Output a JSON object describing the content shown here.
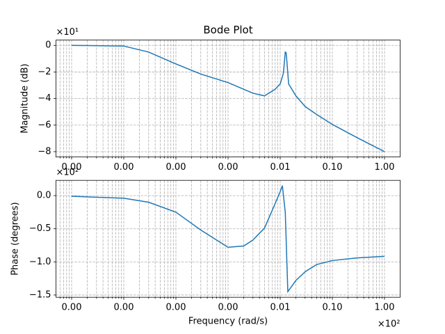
{
  "chart_data": [
    {
      "type": "line",
      "title": "Bode Plot",
      "y_label": "Magnitude (dB)",
      "y_offset": "×10¹",
      "log_x": true,
      "grid": true,
      "minor_grid": true,
      "color": "#1f77b4",
      "xlim": [
        5.012e-05,
        199.5
      ],
      "ylim": [
        -84,
        4
      ],
      "xticks": [
        {
          "value": 0.0001,
          "label": "0.00"
        },
        {
          "value": 0.001,
          "label": "0.00"
        },
        {
          "value": 0.01,
          "label": "0.00"
        },
        {
          "value": 0.1,
          "label": "0.00"
        },
        {
          "value": 1,
          "label": "0.01"
        },
        {
          "value": 10,
          "label": "0.10"
        },
        {
          "value": 100,
          "label": "1.00"
        }
      ],
      "yticks": [
        {
          "value": 0,
          "label": "0"
        },
        {
          "value": -20,
          "label": "−2"
        },
        {
          "value": -40,
          "label": "−4"
        },
        {
          "value": -60,
          "label": "−6"
        },
        {
          "value": -80,
          "label": "−8"
        }
      ],
      "x": [
        0.0001,
        0.001,
        0.003,
        0.01,
        0.03,
        0.1,
        0.3,
        0.5,
        0.8,
        1.0,
        1.15,
        1.25,
        1.3,
        1.38,
        1.45,
        2,
        3,
        5,
        10,
        30,
        100
      ],
      "values": [
        0,
        -0.5,
        -5,
        -14,
        -21.6,
        -28,
        -36,
        -38,
        -33,
        -29,
        -21,
        -5,
        -5.5,
        -18,
        -29,
        -38,
        -46,
        -52,
        -59.5,
        -69.5,
        -80
      ]
    },
    {
      "type": "line",
      "x_label": "Frequency (rad/s)",
      "y_label": "Phase (degrees)",
      "y_offset": "×10²",
      "x_offset": "×10²",
      "log_x": true,
      "grid": true,
      "minor_grid": true,
      "color": "#1f77b4",
      "xlim": [
        5.012e-05,
        199.5
      ],
      "ylim": [
        -153.4,
        23
      ],
      "xticks": [
        {
          "value": 0.0001,
          "label": "0.00"
        },
        {
          "value": 0.001,
          "label": "0.00"
        },
        {
          "value": 0.01,
          "label": "0.00"
        },
        {
          "value": 0.1,
          "label": "0.00"
        },
        {
          "value": 1,
          "label": "0.01"
        },
        {
          "value": 10,
          "label": "0.10"
        },
        {
          "value": 100,
          "label": "1.00"
        }
      ],
      "yticks": [
        {
          "value": 0,
          "label": "0.0"
        },
        {
          "value": -50,
          "label": "−0.5"
        },
        {
          "value": -100,
          "label": "−1.0"
        },
        {
          "value": -150,
          "label": "−1.5"
        }
      ],
      "x": [
        0.0001,
        0.001,
        0.003,
        0.01,
        0.03,
        0.1,
        0.2,
        0.3,
        0.5,
        0.8,
        1.0,
        1.1,
        1.25,
        1.4,
        2,
        3,
        5,
        10,
        30,
        100
      ],
      "values": [
        -1,
        -4,
        -10,
        -25,
        -52,
        -78,
        -76,
        -67,
        -49,
        -12,
        6,
        15,
        -25,
        -145,
        -128,
        -115,
        -104,
        -98,
        -94,
        -91.6
      ]
    }
  ]
}
